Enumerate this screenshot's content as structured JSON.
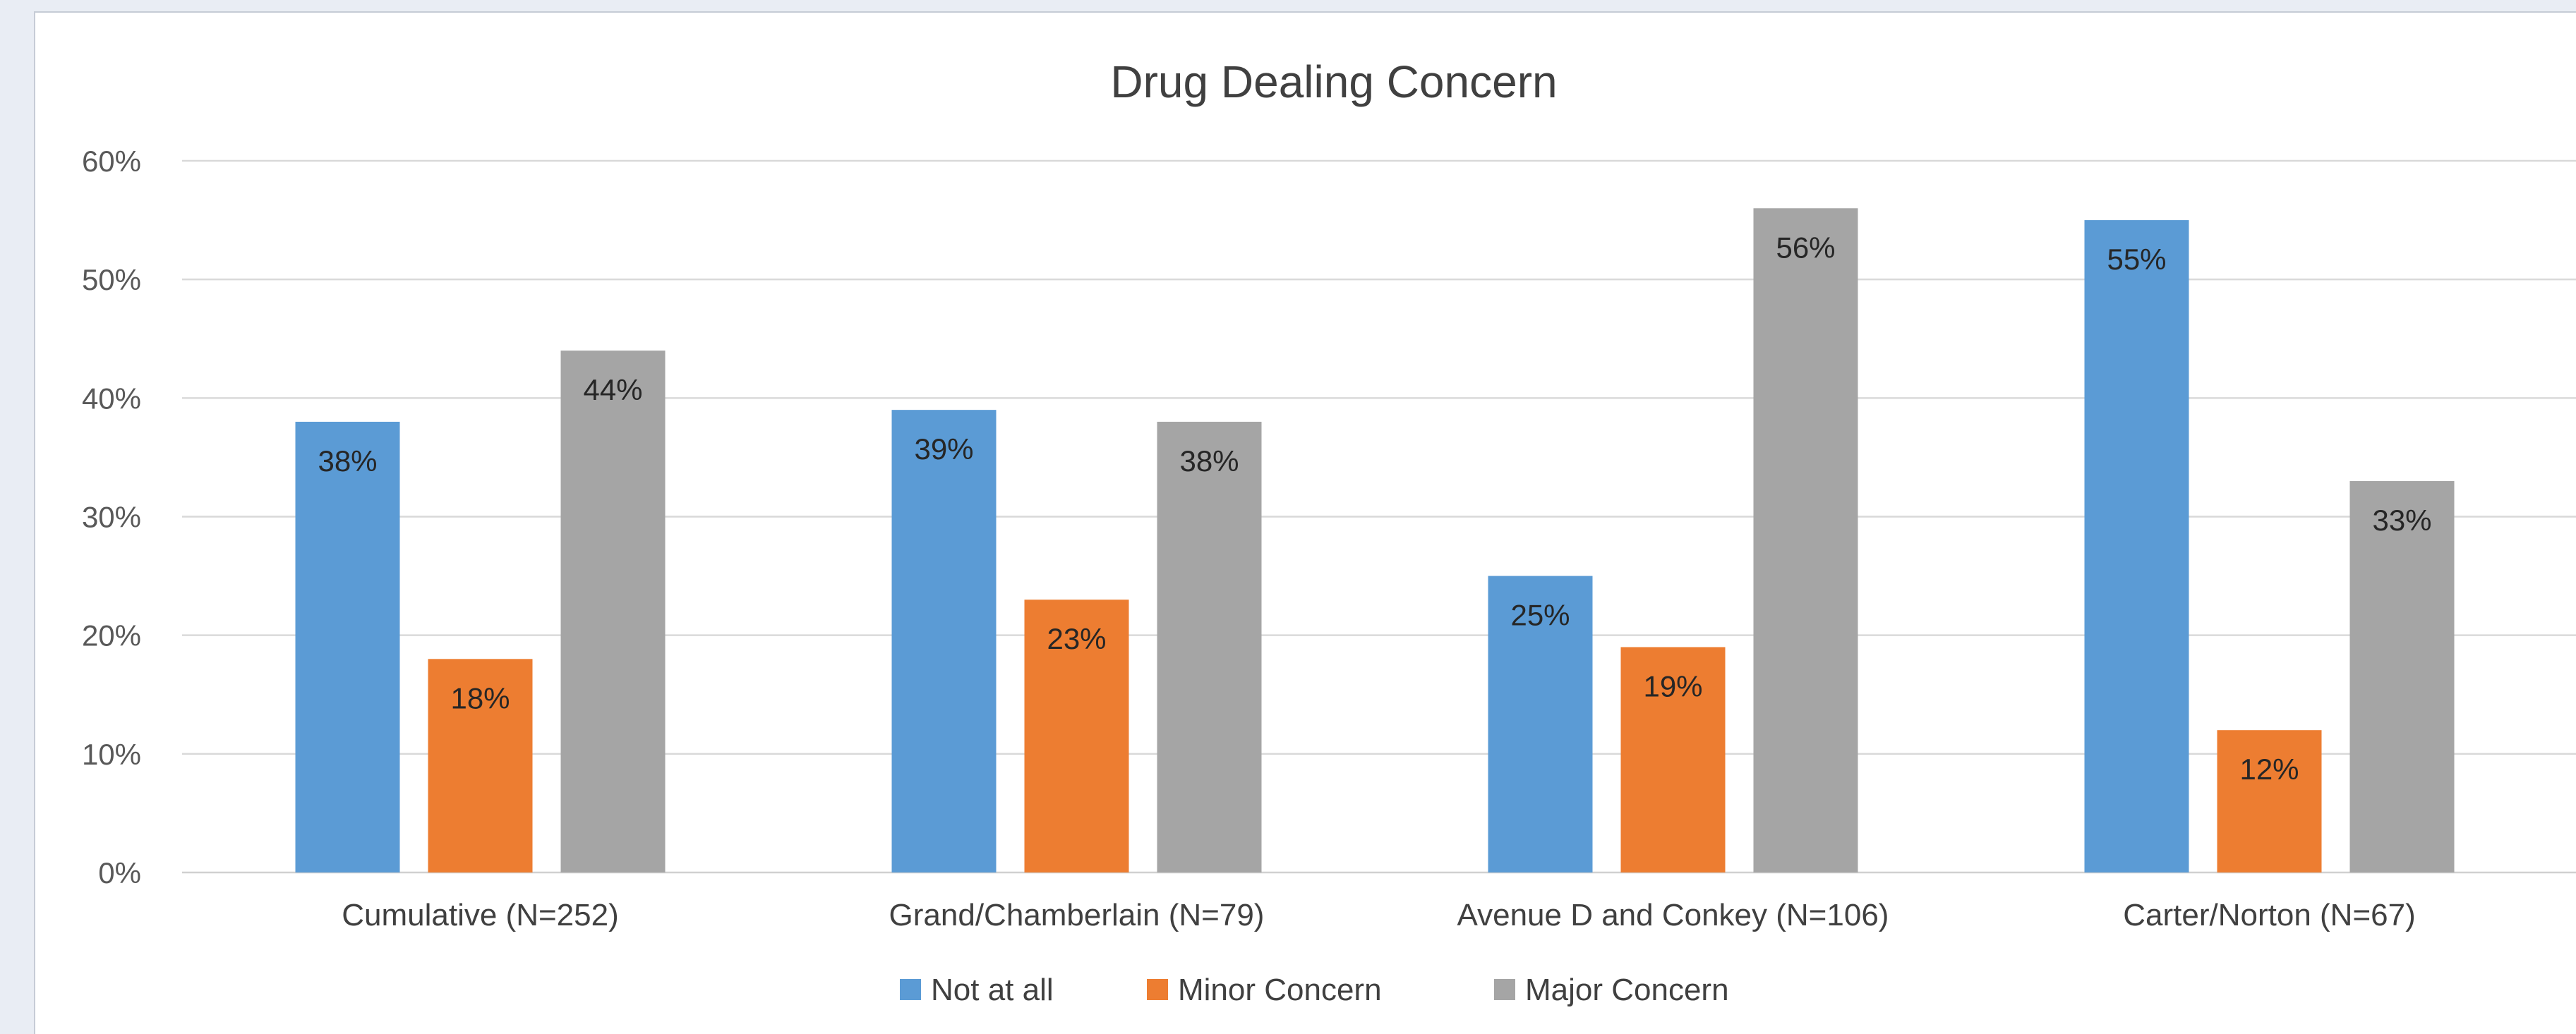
{
  "chart_data": {
    "type": "bar",
    "title": "Drug Dealing Concern",
    "categories": [
      "Cumulative (N=252)",
      "Grand/Chamberlain (N=79)",
      "Avenue D and Conkey (N=106)",
      "Carter/Norton (N=67)"
    ],
    "series": [
      {
        "name": "Not at all",
        "color": "#5b9bd5",
        "values": [
          38,
          39,
          25,
          55
        ],
        "labels": [
          "38%",
          "39%",
          "25%",
          "55%"
        ]
      },
      {
        "name": "Minor Concern",
        "color": "#ed7d31",
        "values": [
          18,
          23,
          19,
          12
        ],
        "labels": [
          "18%",
          "23%",
          "19%",
          "12%"
        ]
      },
      {
        "name": "Major Concern",
        "color": "#a5a5a5",
        "values": [
          44,
          38,
          56,
          33
        ],
        "labels": [
          "44%",
          "38%",
          "56%",
          "33%"
        ]
      }
    ],
    "ylim": [
      0,
      60
    ],
    "yticks": [
      0,
      10,
      20,
      30,
      40,
      50,
      60
    ],
    "ytick_labels": [
      "0%",
      "10%",
      "20%",
      "30%",
      "40%",
      "50%",
      "60%"
    ],
    "xlabel": "",
    "ylabel": "",
    "grid": true,
    "legend_position": "bottom"
  }
}
